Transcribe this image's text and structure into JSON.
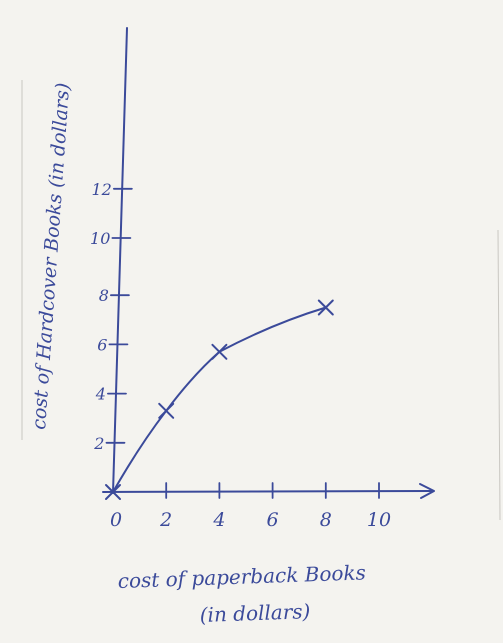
{
  "chart_data": {
    "type": "line",
    "title": "",
    "xlabel_line1": "cost of paperback Books",
    "xlabel_line2": "(in dollars)",
    "ylabel": "cost of Hardcover Books (in dollars)",
    "x_ticks": [
      "0",
      "2",
      "4",
      "6",
      "8",
      "10"
    ],
    "y_ticks": [
      "2",
      "4",
      "6",
      "8",
      "10",
      "12"
    ],
    "xlim": [
      0,
      11
    ],
    "ylim": [
      0,
      12
    ],
    "grid": false,
    "series": [
      {
        "x": [
          0,
          2,
          4,
          8
        ],
        "y": [
          0,
          3.3,
          5.7,
          7.5
        ]
      }
    ],
    "colors": {
      "ink": "#3b4a9a",
      "paper": "#f4f3ef"
    }
  }
}
